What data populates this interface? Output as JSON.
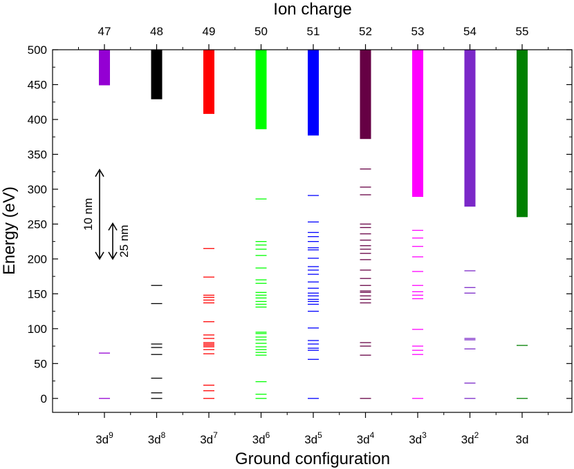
{
  "chart_data": {
    "type": "level-diagram",
    "title_top": "Ion charge",
    "xlabel": "Ground configuration",
    "ylabel": "Energy (eV)",
    "ylim": [
      -20,
      500
    ],
    "yticks": [
      0,
      50,
      100,
      150,
      200,
      250,
      300,
      350,
      400,
      450,
      500
    ],
    "ions": [
      {
        "charge": "47",
        "config_base": "3d",
        "config_sup": "9",
        "color": "#9400d3",
        "continuum_start": 449,
        "levels": [
          0,
          65
        ]
      },
      {
        "charge": "48",
        "config_base": "3d",
        "config_sup": "8",
        "color": "#000000",
        "continuum_start": 429,
        "levels": [
          0,
          8,
          29,
          63,
          73,
          78,
          136,
          162
        ]
      },
      {
        "charge": "49",
        "config_base": "3d",
        "config_sup": "7",
        "color": "#ff0000",
        "continuum_start": 408,
        "levels": [
          0,
          11,
          19,
          64,
          70,
          74,
          76,
          78,
          80,
          86,
          91,
          110,
          137,
          141,
          145,
          148,
          174,
          215
        ]
      },
      {
        "charge": "50",
        "config_base": "3d",
        "config_sup": "6",
        "color": "#00ff00",
        "continuum_start": 386,
        "levels": [
          0,
          6,
          24,
          62,
          66,
          70,
          74,
          79,
          84,
          88,
          93,
          95,
          131,
          135,
          139,
          144,
          148,
          152,
          165,
          170,
          187,
          205,
          214,
          220,
          225,
          286
        ]
      },
      {
        "charge": "51",
        "config_base": "3d",
        "config_sup": "5",
        "color": "#0000ff",
        "continuum_start": 377,
        "levels": [
          0,
          56,
          69,
          72,
          78,
          83,
          101,
          125,
          135,
          139,
          142,
          147,
          151,
          158,
          167,
          178,
          184,
          189,
          201,
          213,
          216,
          225,
          232,
          238,
          253,
          291
        ]
      },
      {
        "charge": "52",
        "config_base": "3d",
        "config_sup": "4",
        "color": "#660044",
        "continuum_start": 372,
        "levels": [
          0,
          62,
          75,
          80,
          137,
          142,
          147,
          152,
          154,
          162,
          172,
          184,
          199,
          208,
          214,
          219,
          227,
          236,
          245,
          250,
          292,
          303,
          329
        ]
      },
      {
        "charge": "53",
        "config_base": "3d",
        "config_sup": "3",
        "color": "#ff00ff",
        "continuum_start": 289,
        "levels": [
          0,
          63,
          69,
          75,
          99,
          143,
          148,
          153,
          162,
          182,
          203,
          218,
          230,
          241
        ]
      },
      {
        "charge": "54",
        "config_base": "3d",
        "config_sup": "2",
        "color": "#7b28c8",
        "continuum_start": 275,
        "levels": [
          0,
          22,
          71,
          84,
          86,
          151,
          159,
          183
        ]
      },
      {
        "charge": "55",
        "config_base": "3d",
        "config_sup": "",
        "color": "#008000",
        "continuum_start": 260,
        "levels": [
          0,
          76
        ]
      }
    ],
    "annotations": [
      {
        "label": "10 nm",
        "energy_from": 200,
        "energy_to": 328
      },
      {
        "label": "25 nm",
        "energy_from": 200,
        "energy_to": 251
      }
    ]
  }
}
